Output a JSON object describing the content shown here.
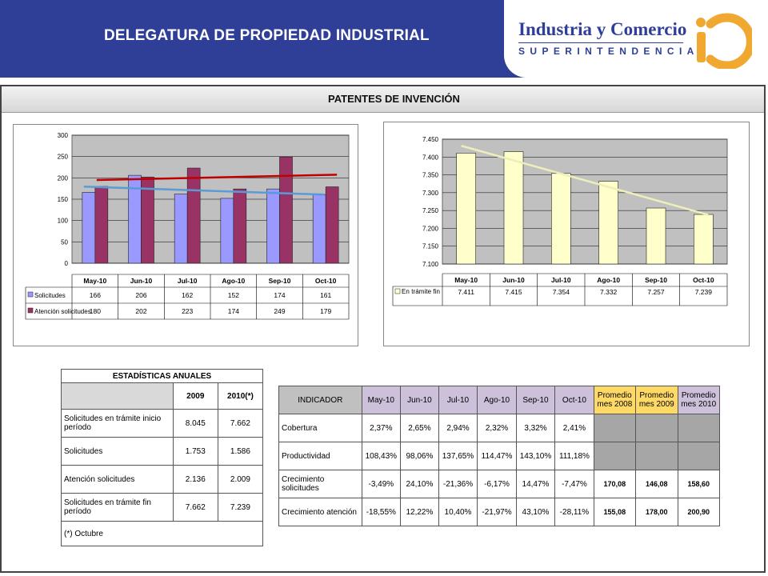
{
  "header": {
    "title": "DELEGATURA DE PROPIEDAD INDUSTRIAL"
  },
  "brand": {
    "line1": "Industria y Comercio",
    "line2": "SUPERINTENDENCIA"
  },
  "section": {
    "title": "PATENTES DE INVENCIÓN"
  },
  "colors": {
    "header_bg": "#2f3e96",
    "solicitudes": "#9999ff",
    "atencion": "#993366",
    "tramite": "#ffffcc",
    "plot_bg": "#c0c0c0",
    "trend_red": "#c00000",
    "trend_blue": "#5b9bd5",
    "highlight": "#ffd966",
    "highlight_purple": "#ccc0da"
  },
  "chart_data": [
    {
      "type": "bar",
      "categories": [
        "May-10",
        "Jun-10",
        "Jul-10",
        "Ago-10",
        "Sep-10",
        "Oct-10"
      ],
      "series": [
        {
          "name": "Solicitudes",
          "values": [
            166,
            206,
            162,
            152,
            174,
            161
          ]
        },
        {
          "name": "Atención solicitudes",
          "values": [
            180,
            202,
            223,
            174,
            249,
            179
          ]
        }
      ],
      "ylim": [
        0,
        300
      ],
      "yticks": [
        "0",
        "50",
        "100",
        "150",
        "200",
        "250",
        "300"
      ],
      "table": {
        "rows": [
          {
            "label": "Solicitudes",
            "values": [
              "166",
              "206",
              "162",
              "152",
              "174",
              "161"
            ]
          },
          {
            "label": "Atención solicitudes",
            "values": [
              "180",
              "202",
              "223",
              "174",
              "249",
              "179"
            ]
          }
        ]
      },
      "trendlines": true,
      "grid": true,
      "legend": "bottom-left"
    },
    {
      "type": "bar",
      "categories": [
        "May-10",
        "Jun-10",
        "Jul-10",
        "Ago-10",
        "Sep-10",
        "Oct-10"
      ],
      "series": [
        {
          "name": "En trámite fin",
          "values": [
            7411,
            7415,
            7354,
            7332,
            7257,
            7239
          ]
        }
      ],
      "ylim": [
        7100,
        7450
      ],
      "yticks": [
        "7.100",
        "7.150",
        "7.200",
        "7.250",
        "7.300",
        "7.350",
        "7.400",
        "7.450"
      ],
      "table": {
        "rows": [
          {
            "label": "En trámite fin",
            "values": [
              "7.411",
              "7.415",
              "7.354",
              "7.332",
              "7.257",
              "7.239"
            ]
          }
        ]
      },
      "trendlines": true,
      "grid": true,
      "legend": "bottom-left"
    },
    {
      "type": "table",
      "title": "ESTADÍSTICAS ANUALES",
      "columns": [
        "",
        "2009",
        "2010(*)"
      ],
      "rows": [
        [
          "Solicitudes en trámite inicio período",
          "8.045",
          "7.662"
        ],
        [
          "Solicitudes",
          "1.753",
          "1.586"
        ],
        [
          "Atención solicitudes",
          "2.136",
          "2.009"
        ],
        [
          "Solicitudes en trámite fin período",
          "7.662",
          "7.239"
        ]
      ],
      "footnote": "(*) Octubre"
    },
    {
      "type": "table",
      "columns": [
        "INDICADOR",
        "May-10",
        "Jun-10",
        "Jul-10",
        "Ago-10",
        "Sep-10",
        "Oct-10",
        "Promedio mes 2008",
        "Promedio mes 2009",
        "Promedio mes 2010"
      ],
      "rows": [
        [
          "Cobertura",
          "2,37%",
          "2,65%",
          "2,94%",
          "2,32%",
          "3,32%",
          "2,41%",
          "",
          "",
          ""
        ],
        [
          "Productividad",
          "108,43%",
          "98,06%",
          "137,65%",
          "114,47%",
          "143,10%",
          "111,18%",
          "",
          "",
          ""
        ],
        [
          "Crecimiento solicitudes",
          "-3,49%",
          "24,10%",
          "-21,36%",
          "-6,17%",
          "14,47%",
          "-7,47%",
          "170,08",
          "146,08",
          "158,60"
        ],
        [
          "Crecimiento atención",
          "-18,55%",
          "12,22%",
          "10,40%",
          "-21,97%",
          "43,10%",
          "-28,11%",
          "155,08",
          "178,00",
          "200,90"
        ]
      ]
    }
  ]
}
